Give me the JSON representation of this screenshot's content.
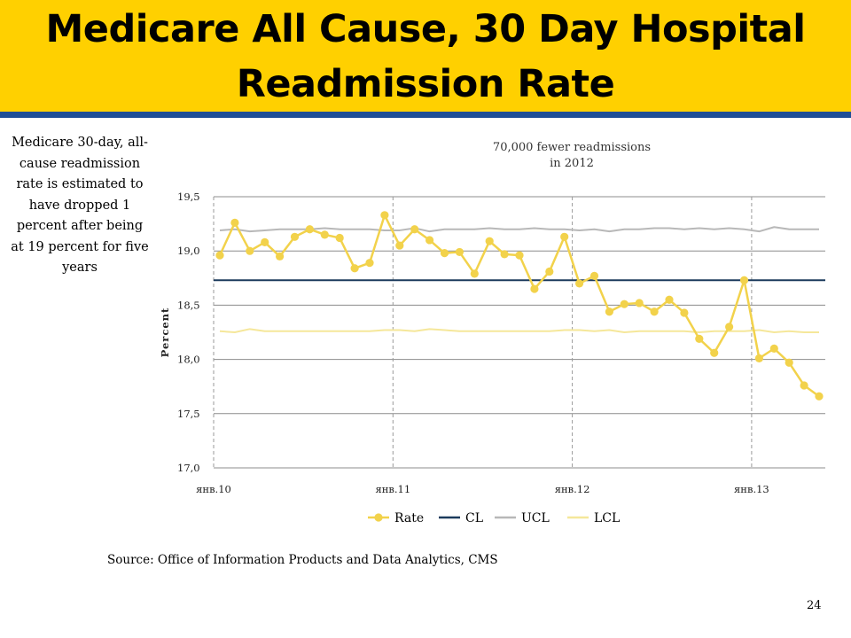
{
  "slide": {
    "title": "Medicare All Cause, 30 Day Hospital Readmission Rate",
    "side_note": "Medicare 30-day, all-cause readmission rate is estimated to have dropped 1 percent after being at 19 percent for five years",
    "annotation": "70,000 fewer readmissions in 2012",
    "source": "Source: Office of Information Products and Data Analytics, CMS",
    "page_number": "24",
    "colors": {
      "title_bar": "#FFD000",
      "title_rule": "#1F4E96"
    }
  },
  "chart_data": {
    "type": "line",
    "ylabel": "Percent",
    "ylim": [
      17.0,
      19.5
    ],
    "yticks": [
      "17,0",
      "17,5",
      "18,0",
      "18,5",
      "19,0",
      "19,5"
    ],
    "x_labels": [
      "янв.10",
      "янв.11",
      "янв.12",
      "янв.13"
    ],
    "grid": {
      "horizontal": true,
      "vertical_dashed_at_years": true
    },
    "legend_placement": "bottom",
    "series": [
      {
        "name": "Rate",
        "color": "#F2D24B",
        "marker": true,
        "values": [
          18.96,
          19.26,
          19.0,
          19.08,
          18.95,
          19.13,
          19.2,
          19.15,
          19.12,
          18.84,
          18.89,
          19.33,
          19.05,
          19.2,
          19.1,
          18.98,
          18.99,
          18.79,
          19.09,
          18.97,
          18.96,
          18.65,
          18.81,
          19.13,
          18.7,
          18.77,
          18.44,
          18.51,
          18.52,
          18.44,
          18.55,
          18.43,
          18.19,
          18.06,
          18.3,
          18.73,
          18.01,
          18.1,
          17.97,
          17.76,
          17.66
        ]
      },
      {
        "name": "CL",
        "color": "#1B3A5C",
        "marker": false,
        "values": [
          18.73,
          18.73,
          18.73,
          18.73,
          18.73,
          18.73,
          18.73,
          18.73,
          18.73,
          18.73,
          18.73,
          18.73,
          18.73,
          18.73,
          18.73,
          18.73,
          18.73,
          18.73,
          18.73,
          18.73,
          18.73,
          18.73,
          18.73,
          18.73,
          18.73,
          18.73,
          18.73,
          18.73,
          18.73,
          18.73,
          18.73,
          18.73,
          18.73,
          18.73,
          18.73,
          18.73,
          18.73,
          18.73,
          18.73,
          18.73,
          18.73
        ]
      },
      {
        "name": "UCL",
        "color": "#B8B8B8",
        "marker": false,
        "values": [
          19.19,
          19.2,
          19.18,
          19.19,
          19.2,
          19.2,
          19.2,
          19.21,
          19.2,
          19.2,
          19.2,
          19.19,
          19.19,
          19.21,
          19.18,
          19.2,
          19.2,
          19.2,
          19.21,
          19.2,
          19.2,
          19.21,
          19.2,
          19.2,
          19.19,
          19.2,
          19.18,
          19.2,
          19.2,
          19.21,
          19.21,
          19.2,
          19.21,
          19.2,
          19.21,
          19.2,
          19.18,
          19.22,
          19.2,
          19.2,
          19.2
        ]
      },
      {
        "name": "LCL",
        "color": "#F5E79A",
        "marker": false,
        "values": [
          18.26,
          18.25,
          18.28,
          18.26,
          18.26,
          18.26,
          18.26,
          18.26,
          18.26,
          18.26,
          18.26,
          18.27,
          18.27,
          18.26,
          18.28,
          18.27,
          18.26,
          18.26,
          18.26,
          18.26,
          18.26,
          18.26,
          18.26,
          18.27,
          18.27,
          18.26,
          18.27,
          18.25,
          18.26,
          18.26,
          18.26,
          18.26,
          18.25,
          18.26,
          18.26,
          18.26,
          18.27,
          18.25,
          18.26,
          18.25,
          18.25
        ]
      }
    ]
  }
}
